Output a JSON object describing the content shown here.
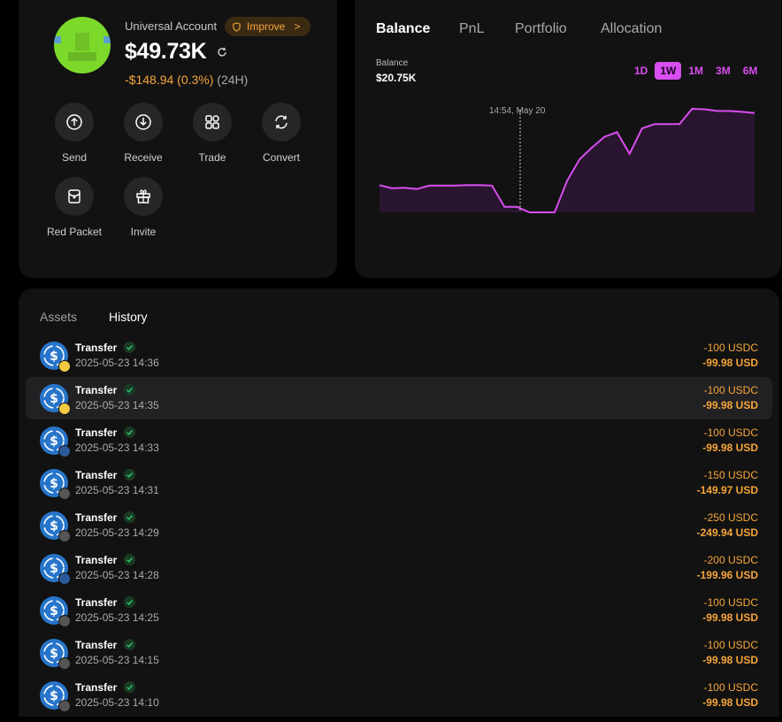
{
  "account": {
    "label": "Universal Account",
    "improve_label": "Improve",
    "improve_arrow": ">",
    "balance": "$49.73K",
    "change_amount": "-$148.94 (0.3%)",
    "change_period": "(24H)",
    "colors": {
      "accent": "#f7a53a",
      "avatar": "#7cd92a"
    },
    "actions": [
      {
        "label": "Send",
        "icon": "upload-icon"
      },
      {
        "label": "Receive",
        "icon": "download-icon"
      },
      {
        "label": "Trade",
        "icon": "trade-icon"
      },
      {
        "label": "Convert",
        "icon": "convert-icon"
      },
      {
        "label": "Red Packet",
        "icon": "red-packet-icon"
      },
      {
        "label": "Invite",
        "icon": "gift-icon"
      }
    ]
  },
  "chart_panel": {
    "tabs": [
      "Balance",
      "PnL",
      "Portfolio",
      "Allocation"
    ],
    "active_tab": "Balance",
    "balance_label": "Balance",
    "balance_value": "$20.75K",
    "ranges": [
      "1D",
      "1W",
      "1M",
      "3M",
      "6M"
    ],
    "active_range": "1W",
    "crosshair_label": "14:54, May 20",
    "colors": {
      "line": "#d84ef0",
      "fill": "#2a1530"
    }
  },
  "chart_data": {
    "type": "area",
    "title": "",
    "xlabel": "",
    "ylabel": "",
    "grid": false,
    "legend": "none",
    "series": [
      {
        "values": [
          0.64,
          0.57,
          0.58,
          0.55,
          0.63,
          0.63,
          0.63,
          0.64,
          0.64,
          0.63,
          0.13,
          0.13,
          0.0,
          0.0,
          0.0,
          0.74,
          1.25,
          1.53,
          1.78,
          1.89,
          1.38,
          1.98,
          2.08,
          2.08,
          2.08,
          2.44,
          2.43,
          2.39,
          2.39,
          2.37,
          2.34
        ]
      }
    ]
  },
  "history": {
    "tabs": [
      "Assets",
      "History"
    ],
    "active_tab": "History",
    "rows": [
      {
        "title": "Transfer",
        "time": "2025-05-23 14:36",
        "amount": "-100 USDC",
        "usd": "-99.98 USD",
        "badge": "#f5c842"
      },
      {
        "title": "Transfer",
        "time": "2025-05-23 14:35",
        "amount": "-100 USDC",
        "usd": "-99.98 USD",
        "badge": "#f5c842"
      },
      {
        "title": "Transfer",
        "time": "2025-05-23 14:33",
        "amount": "-100 USDC",
        "usd": "-99.98 USD",
        "badge": "#2a5a9a"
      },
      {
        "title": "Transfer",
        "time": "2025-05-23 14:31",
        "amount": "-150 USDC",
        "usd": "-149.97 USD",
        "badge": "#555555"
      },
      {
        "title": "Transfer",
        "time": "2025-05-23 14:29",
        "amount": "-250 USDC",
        "usd": "-249.94 USD",
        "badge": "#555555"
      },
      {
        "title": "Transfer",
        "time": "2025-05-23 14:28",
        "amount": "-200 USDC",
        "usd": "-199.96 USD",
        "badge": "#2a5a9a"
      },
      {
        "title": "Transfer",
        "time": "2025-05-23 14:25",
        "amount": "-100 USDC",
        "usd": "-99.98 USD",
        "badge": "#555555"
      },
      {
        "title": "Transfer",
        "time": "2025-05-23 14:15",
        "amount": "-100 USDC",
        "usd": "-99.98 USD",
        "badge": "#555555"
      },
      {
        "title": "Transfer",
        "time": "2025-05-23 14:10",
        "amount": "-100 USDC",
        "usd": "-99.98 USD",
        "badge": "#555555"
      }
    ]
  }
}
